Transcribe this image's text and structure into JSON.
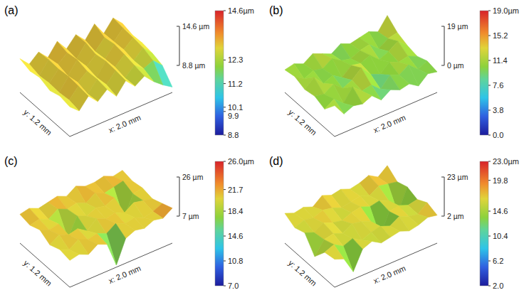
{
  "chart_data": [
    {
      "type": "surface",
      "title": "(a)",
      "xlabel": "x: 2.0 mm",
      "ylabel": "y: 1.2 mm",
      "xlim": [
        0,
        2.0
      ],
      "ylim": [
        0,
        1.2
      ],
      "zlim": [
        8.8,
        14.6
      ],
      "zticks": [
        {
          "value": 14.6,
          "label": "14.6 µm"
        },
        {
          "value": 8.8,
          "label": "8.8 µm"
        }
      ],
      "colorbar": {
        "range": [
          8.8,
          14.6
        ],
        "ticks": [
          {
            "value": 14.6,
            "label": "14.6µm"
          },
          12.3,
          11.2,
          10.1,
          9.9,
          8.8
        ]
      },
      "heights": [
        [
          13.2,
          12.0,
          13.6,
          12.2,
          13.4,
          11.8,
          13.5,
          12.1,
          13.0,
          11.6,
          10.5,
          9.6
        ],
        [
          13.5,
          12.3,
          13.8,
          12.0,
          13.6,
          12.2,
          13.7,
          12.0,
          13.3,
          12.2,
          12.8,
          11.5
        ],
        [
          13.0,
          12.1,
          13.9,
          12.4,
          13.5,
          12.0,
          13.8,
          12.3,
          13.6,
          12.1,
          13.4,
          12.0
        ],
        [
          13.6,
          12.2,
          13.7,
          12.1,
          13.9,
          12.3,
          13.5,
          12.2,
          13.8,
          12.4,
          13.6,
          12.2
        ],
        [
          13.3,
          12.0,
          13.8,
          12.5,
          13.6,
          12.1,
          13.9,
          12.0,
          13.5,
          12.3,
          13.7,
          12.1
        ],
        [
          13.8,
          12.4,
          13.6,
          12.2,
          14.0,
          12.3,
          13.8,
          12.4,
          14.2,
          12.2,
          13.9,
          12.5
        ]
      ]
    },
    {
      "type": "surface",
      "title": "(b)",
      "xlabel": "x: 2.0 mm",
      "ylabel": "y: 1.2 mm",
      "xlim": [
        0,
        2.0
      ],
      "ylim": [
        0,
        1.2
      ],
      "zlim": [
        0,
        19
      ],
      "zticks": [
        {
          "value": 19,
          "label": "19 µm"
        },
        {
          "value": 0,
          "label": "0 µm"
        }
      ],
      "colorbar": {
        "range": [
          0,
          19.0
        ],
        "ticks": [
          {
            "value": 19.0,
            "label": "19.0µm"
          },
          15.2,
          11.4,
          7.6,
          3.8,
          {
            "value": 0,
            "label": "0.0"
          }
        ]
      },
      "heights": [
        [
          15,
          9,
          11,
          10,
          12,
          8,
          11,
          9,
          10,
          7,
          11,
          10
        ],
        [
          9,
          12,
          8,
          14,
          10,
          11,
          7,
          12,
          10,
          13,
          9,
          11
        ],
        [
          11,
          10,
          13,
          9,
          11,
          15,
          10,
          8,
          12,
          10,
          11,
          9
        ],
        [
          10,
          14,
          9,
          11,
          8,
          12,
          11,
          13,
          9,
          11,
          14,
          10
        ],
        [
          12,
          9,
          11,
          10,
          13,
          10,
          9,
          11,
          12,
          8,
          11,
          12
        ],
        [
          11,
          12,
          10,
          13,
          11,
          9,
          12,
          10,
          11,
          12,
          10,
          16
        ]
      ]
    },
    {
      "type": "surface",
      "title": "(c)",
      "xlabel": "x: 2.0 mm",
      "ylabel": "y: 1.2 mm",
      "xlim": [
        0,
        2.0
      ],
      "ylim": [
        0,
        1.2
      ],
      "zlim": [
        7,
        26
      ],
      "zticks": [
        {
          "value": 26,
          "label": "26 µm"
        },
        {
          "value": 7,
          "label": "7 µm"
        }
      ],
      "colorbar": {
        "range": [
          7.0,
          26.0
        ],
        "ticks": [
          {
            "value": 26.0,
            "label": "26.0µm"
          },
          21.7,
          18.4,
          14.6,
          10.8,
          {
            "value": 7,
            "label": "7.0"
          }
        ]
      },
      "heights": [
        [
          20,
          21,
          19,
          22,
          20,
          8,
          19,
          21,
          20,
          22,
          21,
          24
        ],
        [
          21,
          19,
          22,
          20,
          21,
          19,
          22,
          20,
          21,
          19,
          20,
          22
        ],
        [
          19,
          22,
          20,
          21,
          18,
          22,
          20,
          21,
          19,
          22,
          21,
          20
        ],
        [
          22,
          20,
          21,
          12,
          21,
          19,
          21,
          20,
          22,
          10,
          20,
          21
        ],
        [
          20,
          21,
          19,
          22,
          20,
          21,
          19,
          22,
          20,
          21,
          22,
          20
        ],
        [
          21,
          22,
          20,
          21,
          22,
          20,
          23,
          21,
          21,
          22,
          20,
          21
        ]
      ]
    },
    {
      "type": "surface",
      "title": "(d)",
      "xlabel": "x: 2.0 mm",
      "ylabel": "y: 1.2 mm",
      "xlim": [
        0,
        2.0
      ],
      "ylim": [
        0,
        1.2
      ],
      "zlim": [
        2,
        23
      ],
      "zticks": [
        {
          "value": 23,
          "label": "23 µm"
        },
        {
          "value": 2,
          "label": "2 µm"
        }
      ],
      "colorbar": {
        "range": [
          2.0,
          23.0
        ],
        "ticks": [
          {
            "value": 23.0,
            "label": "23.0µm"
          },
          19.8,
          14.6,
          10.4,
          6.2,
          {
            "value": 2,
            "label": "2.0"
          }
        ]
      },
      "heights": [
        [
          17,
          15,
          6,
          16,
          18,
          15,
          16,
          17,
          15,
          16,
          18,
          17
        ],
        [
          16,
          18,
          15,
          17,
          14,
          16,
          17,
          15,
          18,
          16,
          15,
          19
        ],
        [
          9,
          16,
          17,
          15,
          18,
          17,
          15,
          5,
          16,
          17,
          15,
          16
        ],
        [
          17,
          15,
          18,
          16,
          15,
          17,
          18,
          16,
          17,
          15,
          6,
          18
        ],
        [
          15,
          17,
          16,
          18,
          17,
          15,
          16,
          17,
          15,
          18,
          17,
          16
        ],
        [
          18,
          16,
          17,
          15,
          19,
          17,
          18,
          16,
          17,
          19,
          16,
          20
        ]
      ]
    }
  ]
}
